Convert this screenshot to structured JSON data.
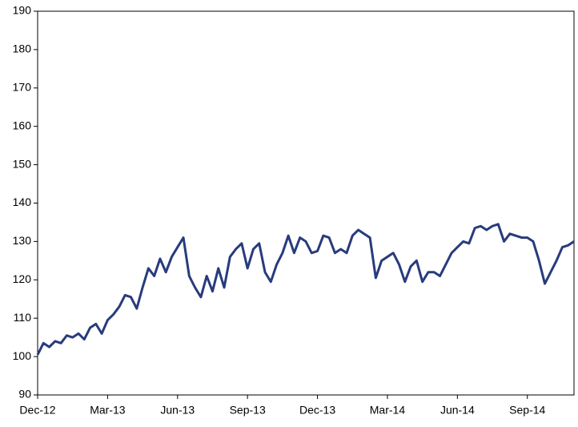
{
  "chart_data": {
    "type": "line",
    "x": [
      0,
      0.25,
      0.5,
      0.75,
      1,
      1.25,
      1.5,
      1.75,
      2,
      2.25,
      2.5,
      2.75,
      3,
      3.25,
      3.5,
      3.75,
      4,
      4.25,
      4.5,
      4.75,
      5,
      5.25,
      5.5,
      5.75,
      6,
      6.25,
      6.5,
      6.75,
      7,
      7.25,
      7.5,
      7.75,
      8,
      8.25,
      8.5,
      8.75,
      9,
      9.25,
      9.5,
      9.75,
      10,
      10.25,
      10.5,
      10.75,
      11,
      11.25,
      11.5,
      11.75,
      12,
      12.25,
      12.5,
      12.75,
      13,
      13.25,
      13.5,
      13.75,
      14,
      14.25,
      14.5,
      14.75,
      15,
      15.25,
      15.5,
      15.75,
      16,
      16.25,
      16.5,
      16.75,
      17,
      17.25,
      17.5,
      17.75,
      18,
      18.25,
      18.5,
      18.75,
      19,
      19.25,
      19.5,
      19.75,
      20,
      20.25,
      20.5,
      20.75,
      21,
      21.25,
      21.5,
      21.75,
      22,
      22.25,
      22.5,
      22.75,
      23
    ],
    "series": [
      {
        "color": "#283b7c",
        "values": [
          100.5,
          103.5,
          102.5,
          104,
          103.5,
          105.5,
          105,
          106,
          104.5,
          107.5,
          108.5,
          106,
          109.5,
          111,
          113,
          116,
          115.5,
          112.5,
          118,
          123,
          121,
          125.5,
          122,
          126,
          128.5,
          131,
          121,
          118,
          115.5,
          121,
          117,
          123,
          118,
          126,
          128,
          129.5,
          123,
          128,
          129.5,
          122,
          119.5,
          124,
          127,
          131.5,
          127,
          131,
          130,
          127,
          127.5,
          131.5,
          131,
          127,
          128,
          127,
          131.5,
          133,
          132,
          131,
          120.5,
          125,
          126,
          127,
          124,
          119.5,
          123.5,
          125,
          119.5,
          122,
          122,
          121,
          124,
          127,
          128.5,
          130,
          129.5,
          133.5,
          134,
          133,
          134,
          134.5,
          130,
          132,
          131.5,
          131,
          131,
          130,
          125,
          119,
          122,
          125,
          128.5,
          129,
          130
        ]
      }
    ],
    "xlim": [
      0,
      23
    ],
    "xticks": [
      {
        "value": 0,
        "label": "Dec-12"
      },
      {
        "value": 3,
        "label": "Mar-13"
      },
      {
        "value": 6,
        "label": "Jun-13"
      },
      {
        "value": 9,
        "label": "Sep-13"
      },
      {
        "value": 12,
        "label": "Dec-13"
      },
      {
        "value": 15,
        "label": "Mar-14"
      },
      {
        "value": 18,
        "label": "Jun-14"
      },
      {
        "value": 21,
        "label": "Sep-14"
      }
    ],
    "ylim": [
      90,
      190
    ],
    "yticks": [
      90,
      100,
      110,
      120,
      130,
      140,
      150,
      160,
      170,
      180,
      190
    ]
  }
}
